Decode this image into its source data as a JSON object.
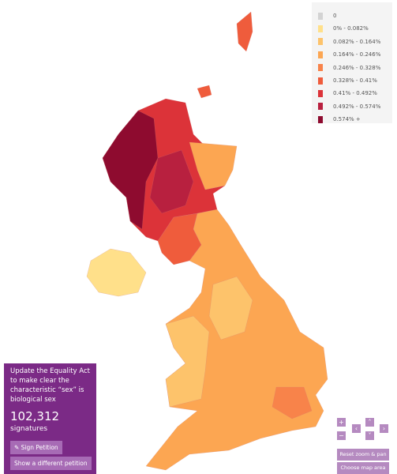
{
  "legend": {
    "items": [
      {
        "label": "0",
        "color": "#d3d3d3"
      },
      {
        "label": "0% - 0.082%",
        "color": "#ffe08a"
      },
      {
        "label": "0.082% - 0.164%",
        "color": "#fdc36b"
      },
      {
        "label": "0.164% - 0.246%",
        "color": "#fca652"
      },
      {
        "label": "0.246% - 0.328%",
        "color": "#f8834a"
      },
      {
        "label": "0.328% - 0.41%",
        "color": "#ef5c3c"
      },
      {
        "label": "0.41% - 0.492%",
        "color": "#dc3339"
      },
      {
        "label": "0.492% - 0.574%",
        "color": "#b8203f"
      },
      {
        "label": "0.574% +",
        "color": "#8e0b2f"
      }
    ]
  },
  "petition": {
    "title": "Update the Equality Act to make clear the characteristic “sex” is biological sex",
    "count": "102,312",
    "count_label": "signatures",
    "sign_button": "Sign Petition",
    "other_button": "Show a different petition"
  },
  "controls": {
    "zoom_in": "+",
    "zoom_out": "−",
    "up": "˄",
    "down": "˅",
    "left": "‹",
    "right": "›",
    "reset": "Reset zoom & pan",
    "choose_area": "Choose map area"
  }
}
